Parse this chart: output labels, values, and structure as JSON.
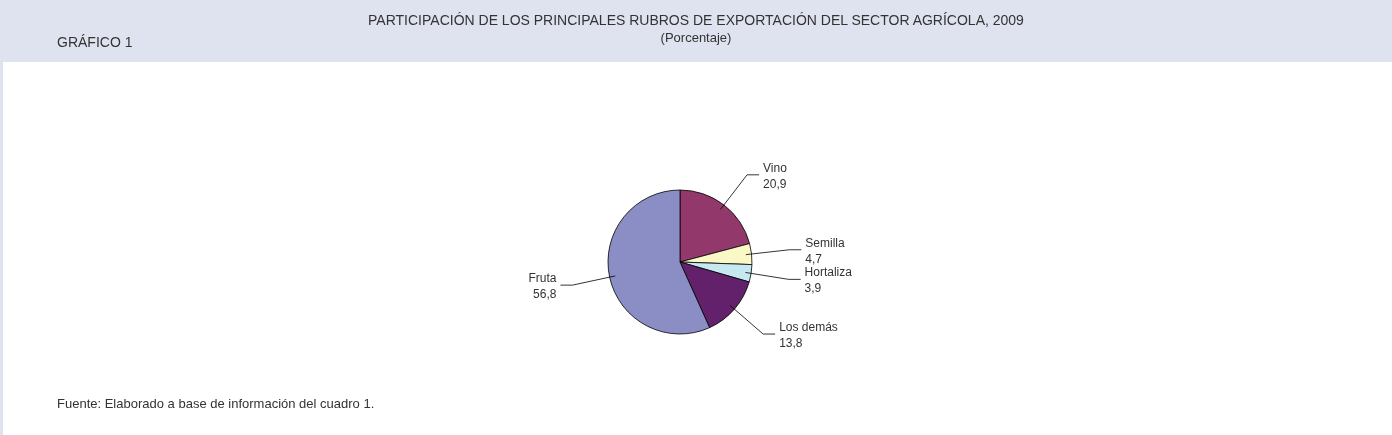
{
  "chart_data": {
    "type": "pie",
    "title": "PARTICIPACIÓN DE LOS PRINCIPALES RUBROS DE EXPORTACIÓN DEL SECTOR AGRÍCOLA, 2009",
    "subtitle": "(Porcentaje)",
    "annotations": [
      "GRÁFICO 1",
      "Fuente: Elaborado a base de información del cuadro 1."
    ],
    "categories": [
      "Vino",
      "Semilla",
      "Hortaliza",
      "Los demás",
      "Fruta"
    ],
    "values": [
      20.9,
      4.7,
      3.9,
      13.8,
      56.8
    ],
    "value_labels": [
      "20,9",
      "4,7",
      "3,9",
      "13,8",
      "56,8"
    ],
    "colors": [
      "#92386b",
      "#fbf8c8",
      "#c6e8f0",
      "#63216b",
      "#8a8ec4"
    ]
  }
}
